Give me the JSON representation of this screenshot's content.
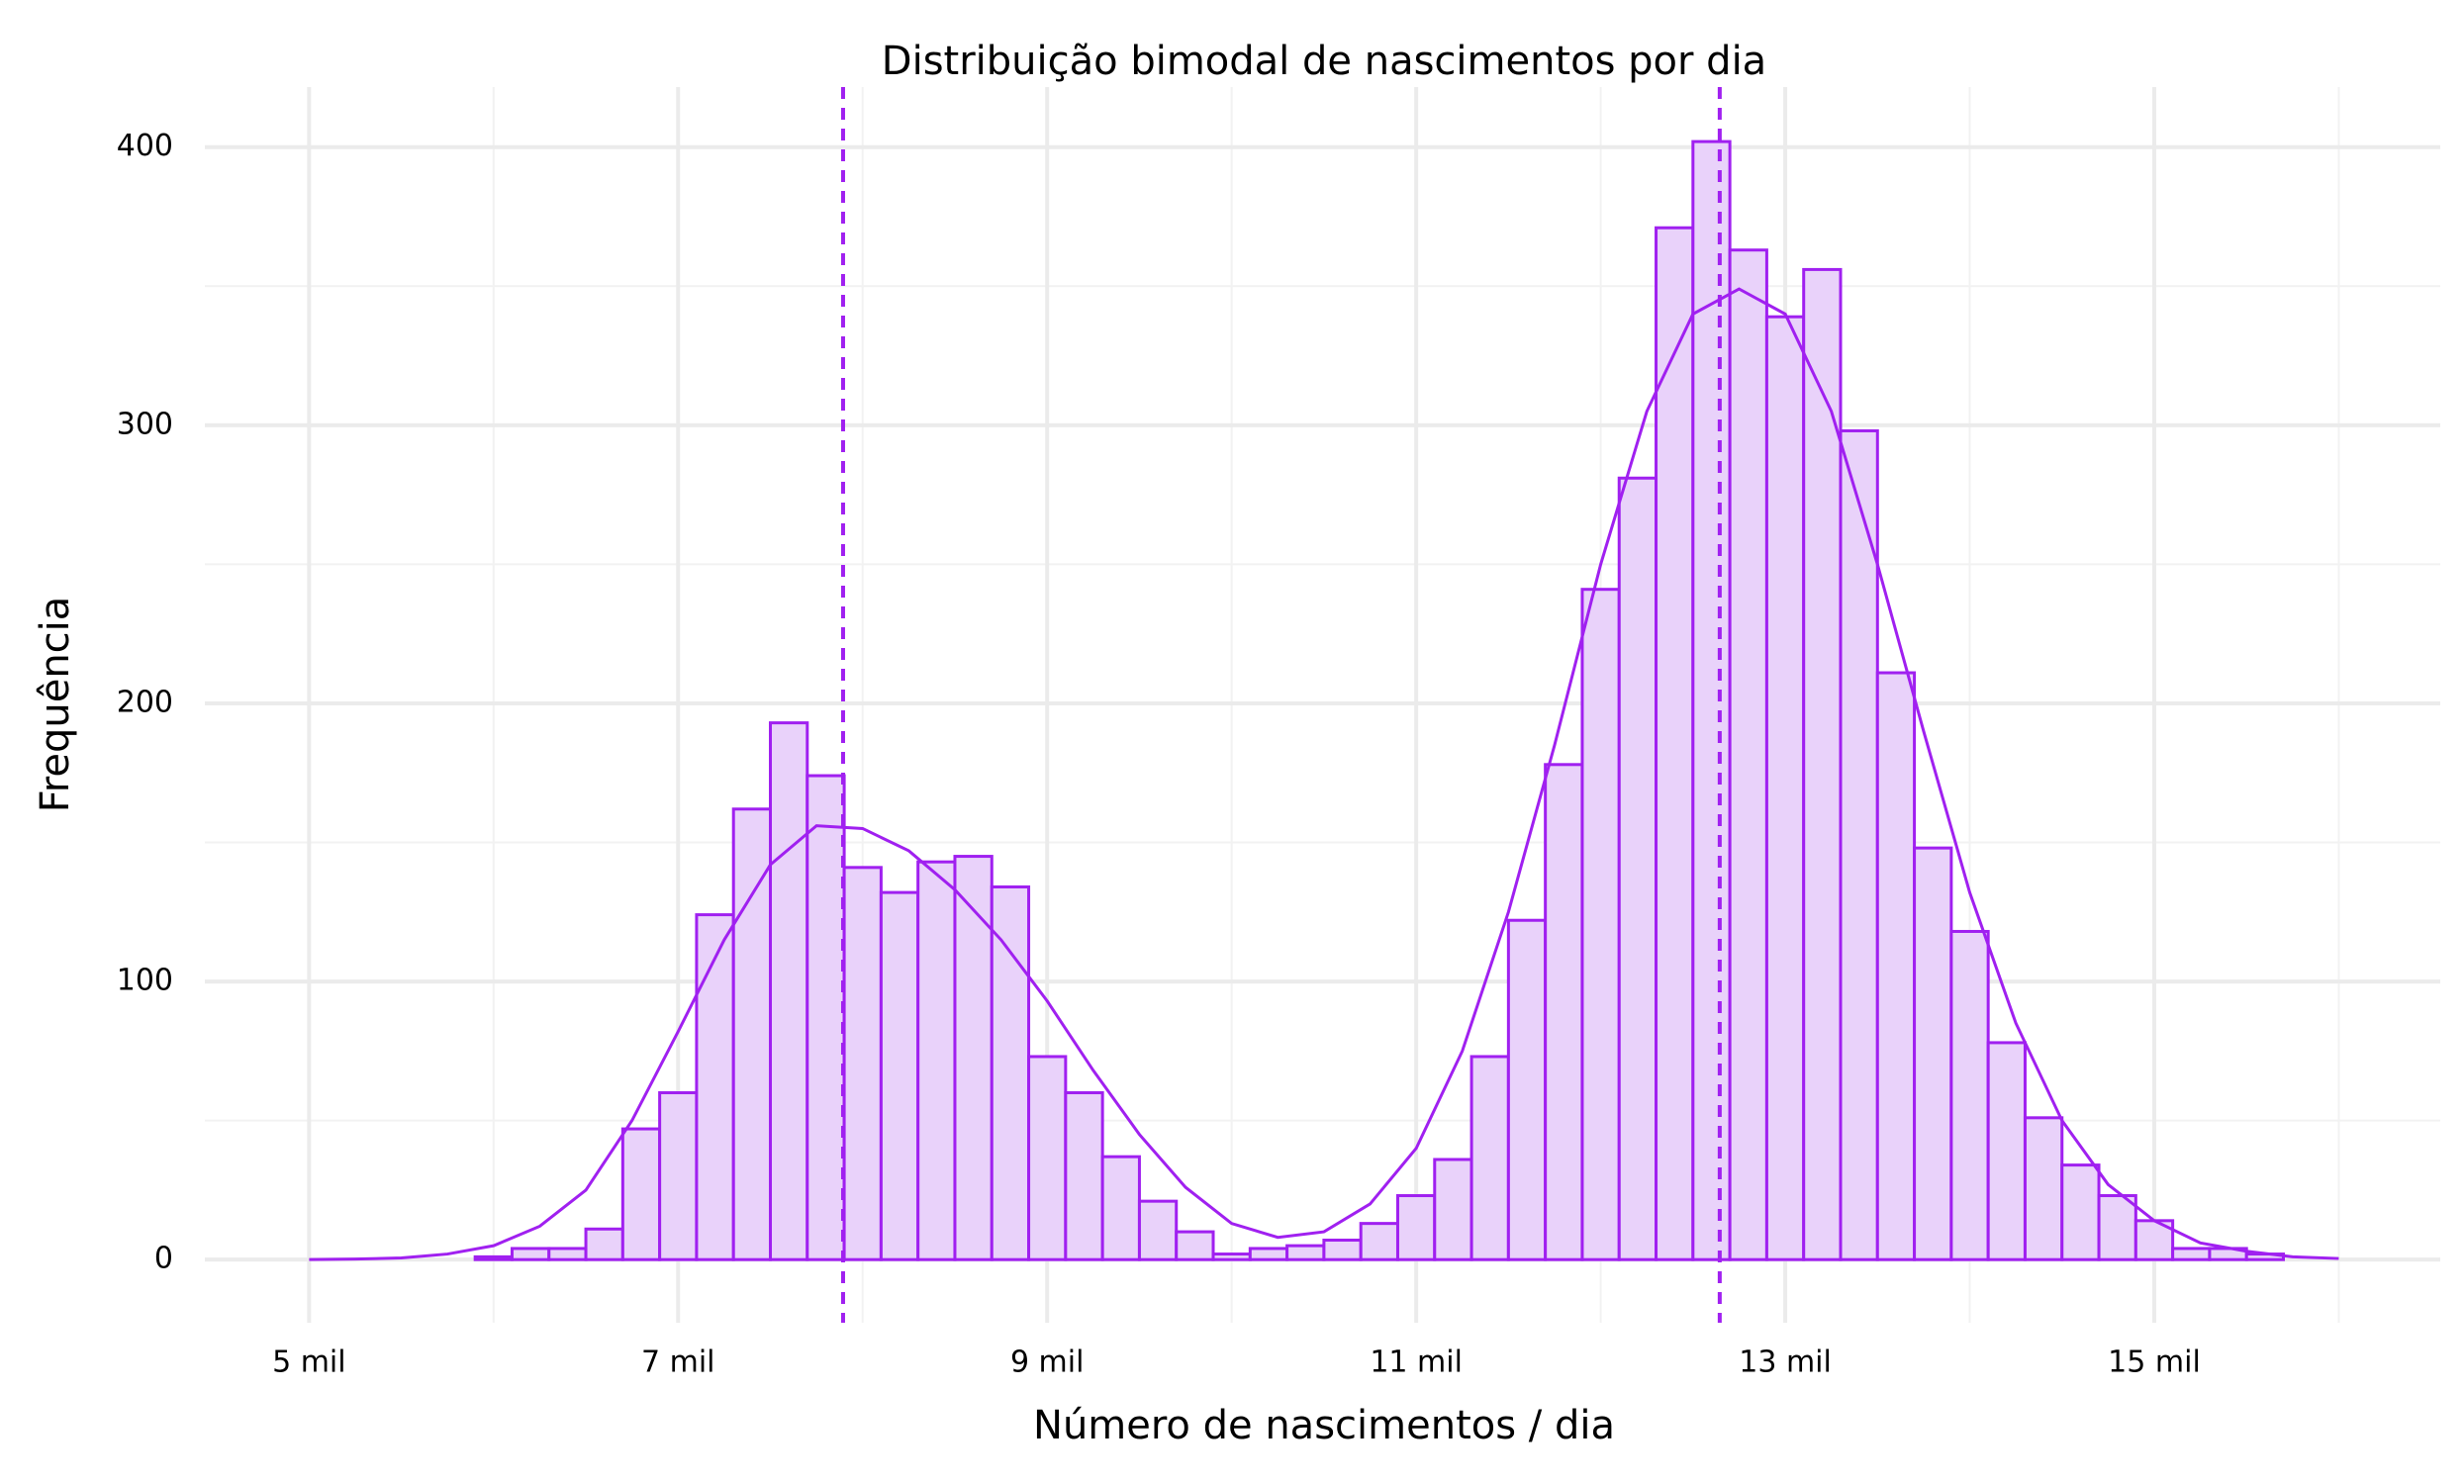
{
  "chart_data": {
    "type": "histogram",
    "title": "Distribuição bimodal de nascimentos por dia",
    "x_label": "Número de nascimentos / dia",
    "y_label": "Frequência",
    "bins": [
      5900,
      6100,
      6300,
      6500,
      6700,
      6900,
      7100,
      7300,
      7500,
      7700,
      7900,
      8100,
      8300,
      8500,
      8700,
      8900,
      9100,
      9300,
      9500,
      9700,
      9900,
      10100,
      10300,
      10500,
      10700,
      10900,
      11100,
      11300,
      11500,
      11700,
      11900,
      12100,
      12300,
      12500,
      12700,
      12900,
      13100,
      13300,
      13500,
      13700,
      13900,
      14100,
      14300,
      14500,
      14700,
      14900,
      15100,
      15300,
      15500,
      15700
    ],
    "values": [
      1,
      4,
      4,
      11,
      47,
      60,
      124,
      162,
      193,
      174,
      141,
      132,
      143,
      145,
      134,
      73,
      60,
      37,
      21,
      10,
      2,
      4,
      5,
      7,
      13,
      23,
      36,
      73,
      122,
      178,
      241,
      281,
      371,
      402,
      363,
      339,
      356,
      298,
      211,
      148,
      118,
      78,
      51,
      34,
      23,
      14,
      4,
      4,
      2
    ],
    "color": "#a020f0",
    "fill_color": "#e9d2fa",
    "density": {
      "x": [
        5000,
        5250,
        5500,
        5750,
        6000,
        6250,
        6500,
        6750,
        7000,
        7250,
        7500,
        7750,
        8000,
        8250,
        8500,
        8750,
        9000,
        9250,
        9500,
        9750,
        10000,
        10250,
        10500,
        10750,
        11000,
        11250,
        11500,
        11750,
        12000,
        12250,
        12500,
        12750,
        13000,
        13250,
        13500,
        13750,
        14000,
        14250,
        14500,
        14750,
        15000,
        15250,
        15500,
        15750,
        16000
      ],
      "values": [
        0,
        0.2,
        0.6,
        2,
        5,
        12,
        25,
        50,
        82,
        115,
        142,
        156,
        155,
        147,
        133,
        115,
        93,
        68,
        45,
        26,
        13,
        8,
        10,
        20,
        40,
        75,
        125,
        185,
        250,
        305,
        340,
        349,
        340,
        305,
        250,
        190,
        132,
        85,
        50,
        27,
        14,
        6,
        3,
        1,
        0.4
      ]
    },
    "vlines": [
      7894,
      12645
    ],
    "xlim": [
      4435,
      16550
    ],
    "ylim": [
      -22.7,
      421.6
    ],
    "xticks": [
      {
        "value": 5000,
        "label": "5 mil"
      },
      {
        "value": 7000,
        "label": "7 mil"
      },
      {
        "value": 9000,
        "label": "9 mil"
      },
      {
        "value": 11000,
        "label": "11 mil"
      },
      {
        "value": 13000,
        "label": "13 mil"
      },
      {
        "value": 15000,
        "label": "15 mil"
      }
    ],
    "yticks": [
      0,
      100,
      200,
      300,
      400
    ],
    "x_minor_ticks": [
      6000,
      8000,
      10000,
      12000,
      14000,
      16000
    ],
    "y_minor_ticks": [
      50,
      150,
      250,
      350
    ],
    "grid": true
  }
}
